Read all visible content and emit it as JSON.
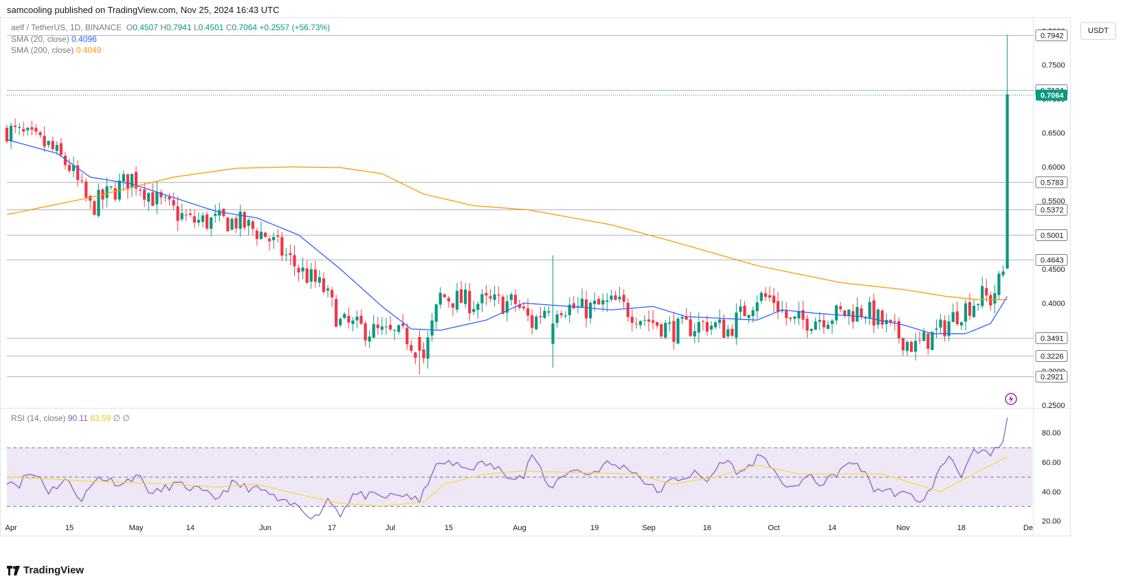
{
  "header": {
    "published": "samcooling published on TradingView.com, Nov 25, 2024 16:43 UTC"
  },
  "legend": {
    "symbol": "aelf / TetherUS, 1D, BINANCE",
    "open_label": "O",
    "open": "0.4507",
    "high_label": "H",
    "high": "0.7941",
    "low_label": "L",
    "low": "0.4501",
    "close_label": "C",
    "close": "0.7064",
    "change": "+0.2557 (+56.73%)",
    "sma20_label": "SMA (20, close)",
    "sma20_value": "0.4096",
    "sma200_label": "SMA (200, close)",
    "sma200_value": "0.4049",
    "rsi_label": "RSI (14, close)",
    "rsi_value": "90.11",
    "rsi_ma_value": "63.59",
    "rsi_extra": "∅ ∅"
  },
  "unit": "USDT",
  "footer": {
    "brand": "TradingView"
  },
  "colors": {
    "up": "#089981",
    "down": "#f23645",
    "sma20": "#2962ff",
    "sma200": "#ff9800",
    "rsi": "#7e57c2",
    "rsi_ma": "#fdd835",
    "rsi_band": "#ede7f6"
  },
  "chart_data": {
    "type": "candlestick",
    "title": "aelf / TetherUS, 1D, BINANCE",
    "ylabel": "USDT",
    "ylim": [
      0.25,
      0.82
    ],
    "price_ticks": [
      0.25,
      0.3,
      0.35,
      0.4,
      0.45,
      0.5,
      0.55,
      0.6,
      0.65,
      0.7,
      0.75,
      0.8
    ],
    "price_tick_labels": [
      "0.2500",
      "0.3000",
      "0.3500",
      "0.4000",
      "0.4500",
      "0.5000",
      "0.5500",
      "0.6000",
      "0.6500",
      "0.7000",
      "0.7500",
      "0.8000"
    ],
    "level_lines": [
      0.7942,
      0.7134,
      0.5783,
      0.5372,
      0.5001,
      0.4643,
      0.3491,
      0.3226,
      0.2921
    ],
    "level_labels": [
      "0.7942",
      "0.7134",
      "0.5783",
      "0.5372",
      "0.5001",
      "0.4643",
      "0.3491",
      "0.3226",
      "0.2921"
    ],
    "last_price": 0.7064,
    "last_price_label": "0.7064",
    "x_labels": [
      "Apr",
      "15",
      "May",
      "14",
      "Jun",
      "17",
      "Jul",
      "15",
      "Aug",
      "19",
      "Sep",
      "16",
      "Oct",
      "14",
      "Nov",
      "18",
      "De"
    ],
    "x_label_days": [
      1,
      15,
      31,
      44,
      62,
      78,
      92,
      106,
      123,
      141,
      154,
      168,
      184,
      198,
      215,
      229,
      245
    ],
    "dates_note": "day index 0 = 2024-03-31, last candle = 2024-11-25",
    "close_anchors": [
      [
        0,
        0.655
      ],
      [
        10,
        0.63
      ],
      [
        15,
        0.6
      ],
      [
        20,
        0.54
      ],
      [
        30,
        0.585
      ],
      [
        36,
        0.55
      ],
      [
        44,
        0.52
      ],
      [
        55,
        0.52
      ],
      [
        62,
        0.5
      ],
      [
        70,
        0.45
      ],
      [
        76,
        0.42
      ],
      [
        80,
        0.37
      ],
      [
        90,
        0.355
      ],
      [
        96,
        0.35
      ],
      [
        100,
        0.32
      ],
      [
        104,
        0.41
      ],
      [
        112,
        0.4
      ],
      [
        122,
        0.4
      ],
      [
        126,
        0.37
      ],
      [
        130,
        0.4
      ],
      [
        138,
        0.39
      ],
      [
        146,
        0.4
      ],
      [
        152,
        0.38
      ],
      [
        160,
        0.36
      ],
      [
        168,
        0.37
      ],
      [
        173,
        0.36
      ],
      [
        180,
        0.41
      ],
      [
        184,
        0.405
      ],
      [
        188,
        0.37
      ],
      [
        196,
        0.38
      ],
      [
        206,
        0.39
      ],
      [
        212,
        0.36
      ],
      [
        218,
        0.335
      ],
      [
        224,
        0.36
      ],
      [
        228,
        0.385
      ],
      [
        234,
        0.41
      ],
      [
        236,
        0.405
      ],
      [
        238,
        0.43
      ],
      [
        239,
        0.445
      ],
      [
        240,
        0.7064
      ]
    ],
    "special_candles": [
      {
        "day": 240,
        "open": 0.4507,
        "high": 0.7941,
        "low": 0.4501,
        "close": 0.7064
      },
      {
        "day": 99,
        "open": 0.35,
        "high": 0.36,
        "low": 0.295,
        "close": 0.33
      },
      {
        "day": 131,
        "open": 0.34,
        "high": 0.47,
        "low": 0.305,
        "close": 0.37
      }
    ],
    "sma20_anchors": [
      [
        0,
        0.64
      ],
      [
        12,
        0.62
      ],
      [
        20,
        0.585
      ],
      [
        30,
        0.575
      ],
      [
        40,
        0.555
      ],
      [
        50,
        0.535
      ],
      [
        60,
        0.525
      ],
      [
        70,
        0.5
      ],
      [
        80,
        0.45
      ],
      [
        90,
        0.395
      ],
      [
        97,
        0.362
      ],
      [
        104,
        0.36
      ],
      [
        115,
        0.375
      ],
      [
        124,
        0.4
      ],
      [
        135,
        0.395
      ],
      [
        145,
        0.39
      ],
      [
        155,
        0.395
      ],
      [
        163,
        0.38
      ],
      [
        170,
        0.378
      ],
      [
        180,
        0.375
      ],
      [
        186,
        0.39
      ],
      [
        194,
        0.385
      ],
      [
        205,
        0.38
      ],
      [
        215,
        0.368
      ],
      [
        222,
        0.355
      ],
      [
        230,
        0.355
      ],
      [
        236,
        0.37
      ],
      [
        240,
        0.4096
      ]
    ],
    "sma200_anchors": [
      [
        0,
        0.53
      ],
      [
        20,
        0.555
      ],
      [
        40,
        0.585
      ],
      [
        55,
        0.598
      ],
      [
        68,
        0.6
      ],
      [
        80,
        0.599
      ],
      [
        90,
        0.59
      ],
      [
        100,
        0.56
      ],
      [
        112,
        0.543
      ],
      [
        125,
        0.537
      ],
      [
        145,
        0.515
      ],
      [
        160,
        0.49
      ],
      [
        180,
        0.455
      ],
      [
        200,
        0.43
      ],
      [
        215,
        0.42
      ],
      [
        225,
        0.41
      ],
      [
        233,
        0.405
      ],
      [
        240,
        0.4049
      ]
    ],
    "rsi": {
      "ylim": [
        10,
        95
      ],
      "ticks": [
        20,
        40,
        60,
        80
      ],
      "tick_labels": [
        "20.00",
        "40.00",
        "60.00",
        "80.00"
      ],
      "bands": [
        30,
        50,
        70
      ],
      "anchors": [
        [
          0,
          48
        ],
        [
          3,
          45
        ],
        [
          5,
          52
        ],
        [
          8,
          50
        ],
        [
          10,
          40
        ],
        [
          14,
          48
        ],
        [
          18,
          35
        ],
        [
          22,
          50
        ],
        [
          28,
          45
        ],
        [
          31,
          52
        ],
        [
          35,
          38
        ],
        [
          40,
          45
        ],
        [
          45,
          42
        ],
        [
          50,
          35
        ],
        [
          54,
          45
        ],
        [
          62,
          40
        ],
        [
          66,
          32
        ],
        [
          70,
          30
        ],
        [
          74,
          22
        ],
        [
          77,
          35
        ],
        [
          80,
          25
        ],
        [
          83,
          38
        ],
        [
          90,
          36
        ],
        [
          96,
          38
        ],
        [
          99,
          32
        ],
        [
          102,
          54
        ],
        [
          105,
          60
        ],
        [
          110,
          56
        ],
        [
          115,
          59
        ],
        [
          120,
          52
        ],
        [
          124,
          50
        ],
        [
          126,
          66
        ],
        [
          130,
          42
        ],
        [
          135,
          55
        ],
        [
          140,
          52
        ],
        [
          144,
          59
        ],
        [
          150,
          55
        ],
        [
          153,
          47
        ],
        [
          156,
          40
        ],
        [
          160,
          48
        ],
        [
          165,
          52
        ],
        [
          168,
          47
        ],
        [
          172,
          62
        ],
        [
          176,
          52
        ],
        [
          180,
          63
        ],
        [
          184,
          57
        ],
        [
          187,
          40
        ],
        [
          192,
          50
        ],
        [
          196,
          45
        ],
        [
          200,
          55
        ],
        [
          204,
          60
        ],
        [
          208,
          42
        ],
        [
          212,
          40
        ],
        [
          218,
          36
        ],
        [
          220,
          33
        ],
        [
          223,
          50
        ],
        [
          226,
          65
        ],
        [
          229,
          52
        ],
        [
          232,
          66
        ],
        [
          236,
          65
        ],
        [
          238,
          70
        ],
        [
          239,
          74
        ],
        [
          240,
          90.11
        ]
      ],
      "ma_anchors": [
        [
          0,
          50
        ],
        [
          20,
          47
        ],
        [
          40,
          45
        ],
        [
          50,
          43
        ],
        [
          60,
          45
        ],
        [
          70,
          38
        ],
        [
          80,
          32
        ],
        [
          90,
          30
        ],
        [
          100,
          33
        ],
        [
          105,
          45
        ],
        [
          115,
          52
        ],
        [
          124,
          54
        ],
        [
          135,
          53
        ],
        [
          150,
          52
        ],
        [
          160,
          45
        ],
        [
          170,
          50
        ],
        [
          180,
          58
        ],
        [
          190,
          52
        ],
        [
          200,
          52
        ],
        [
          210,
          52
        ],
        [
          218,
          45
        ],
        [
          224,
          40
        ],
        [
          232,
          52
        ],
        [
          236,
          58
        ],
        [
          240,
          63.59
        ]
      ]
    }
  }
}
